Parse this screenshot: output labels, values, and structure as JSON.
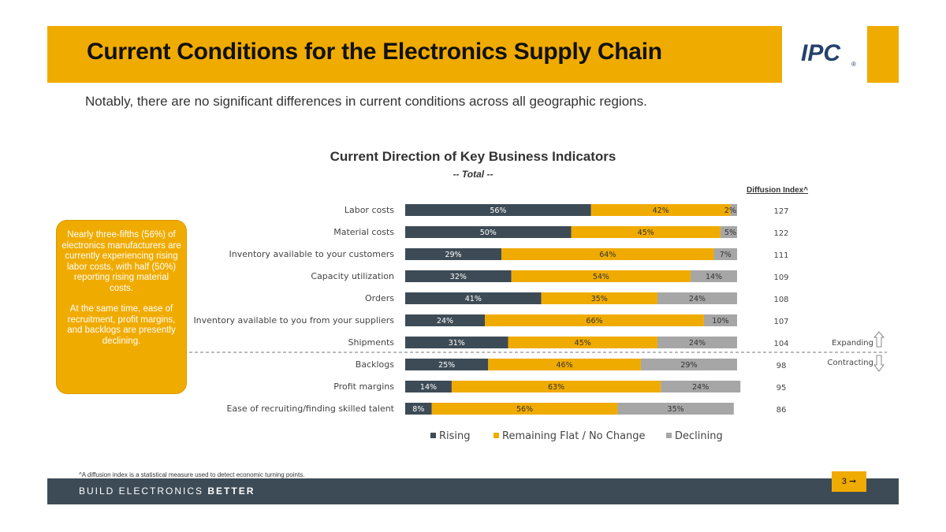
{
  "header": {
    "title": "Current Conditions for the Electronics Supply Chain",
    "logo_text": "IPC",
    "logo_mark": "®"
  },
  "subtitle": "Notably, there are no significant differences in current conditions across all geographic regions.",
  "callout": {
    "para1": "Nearly three-fifths (56%) of electronics manufacturers are currently experiencing rising labor costs, with half (50%) reporting rising material costs.",
    "para2": "At the same time, ease of recruitment, profit margins, and backlogs are presently declining."
  },
  "colors": {
    "accent": "#f0ab00",
    "rising": "#3d4b56",
    "flat": "#f0ab00",
    "declining": "#a6a6a6",
    "footer": "#3d4b56",
    "logo": "#26416b"
  },
  "chart_data": {
    "type": "bar",
    "orientation": "horizontal-stacked-100",
    "title": "Current Direction of Key Business Indicators",
    "subtitle": "-- Total --",
    "categories": [
      "Labor costs",
      "Material costs",
      "Inventory available to your customers",
      "Capacity utilization",
      "Orders",
      "Inventory available to you from your suppliers",
      "Shipments",
      "Backlogs",
      "Profit margins",
      "Ease of recruiting/finding skilled talent"
    ],
    "series": [
      {
        "name": "Rising",
        "values": [
          56,
          50,
          29,
          32,
          41,
          24,
          31,
          25,
          14,
          8
        ]
      },
      {
        "name": "Remaining Flat / No Change",
        "values": [
          42,
          45,
          64,
          54,
          35,
          66,
          45,
          46,
          63,
          56
        ]
      },
      {
        "name": "Declining",
        "values": [
          2,
          5,
          7,
          14,
          24,
          10,
          24,
          29,
          24,
          35
        ]
      }
    ],
    "diffusion_index_label": "Diffusion Index^",
    "diffusion_index": [
      127,
      122,
      111,
      109,
      108,
      107,
      104,
      98,
      95,
      86
    ],
    "expanding_label": "Expanding",
    "contracting_label": "Contracting",
    "legend_position": "bottom",
    "xlim": [
      0,
      100
    ]
  },
  "footnote": "^A diffusion index is a statistical measure used to detect economic turning points.",
  "footer": {
    "tagline_part1": "BUILD ELECTRONICS ",
    "tagline_part2": "BETTER"
  },
  "page": {
    "number": "3",
    "arrow": "➞"
  }
}
